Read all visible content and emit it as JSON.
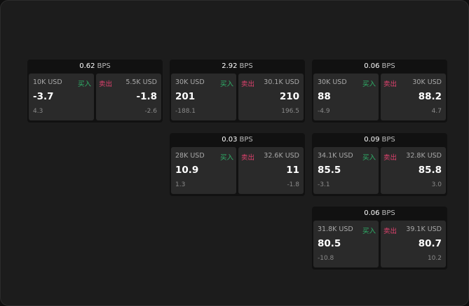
{
  "labels": {
    "buy": "买入",
    "sell": "卖出",
    "bps_unit": "BPS"
  },
  "colors": {
    "buy": "#2fb36a",
    "sell": "#e0426e"
  },
  "panels": [
    {
      "bps": "0.62",
      "buy": {
        "qty": "10K USD",
        "price": "-3.7",
        "delta": "4.3"
      },
      "sell": {
        "qty": "5.5K USD",
        "price": "-1.8",
        "delta": "-2.6"
      }
    },
    {
      "bps": "2.92",
      "buy": {
        "qty": "30K USD",
        "price": "201",
        "delta": "-188.1"
      },
      "sell": {
        "qty": "30.1K USD",
        "price": "210",
        "delta": "196.5"
      }
    },
    {
      "bps": "0.06",
      "buy": {
        "qty": "30K USD",
        "price": "88",
        "delta": "-4.9"
      },
      "sell": {
        "qty": "30K USD",
        "price": "88.2",
        "delta": "4.7"
      }
    },
    {
      "bps": "0.03",
      "buy": {
        "qty": "28K USD",
        "price": "10.9",
        "delta": "1.3"
      },
      "sell": {
        "qty": "32.6K USD",
        "price": "11",
        "delta": "-1.8"
      }
    },
    {
      "bps": "0.09",
      "buy": {
        "qty": "34.1K USD",
        "price": "85.5",
        "delta": "-3.1"
      },
      "sell": {
        "qty": "32.8K USD",
        "price": "85.8",
        "delta": "3.0"
      }
    },
    {
      "bps": "0.06",
      "buy": {
        "qty": "31.8K USD",
        "price": "80.5",
        "delta": "-10.8"
      },
      "sell": {
        "qty": "39.1K USD",
        "price": "80.7",
        "delta": "10.2"
      }
    }
  ]
}
